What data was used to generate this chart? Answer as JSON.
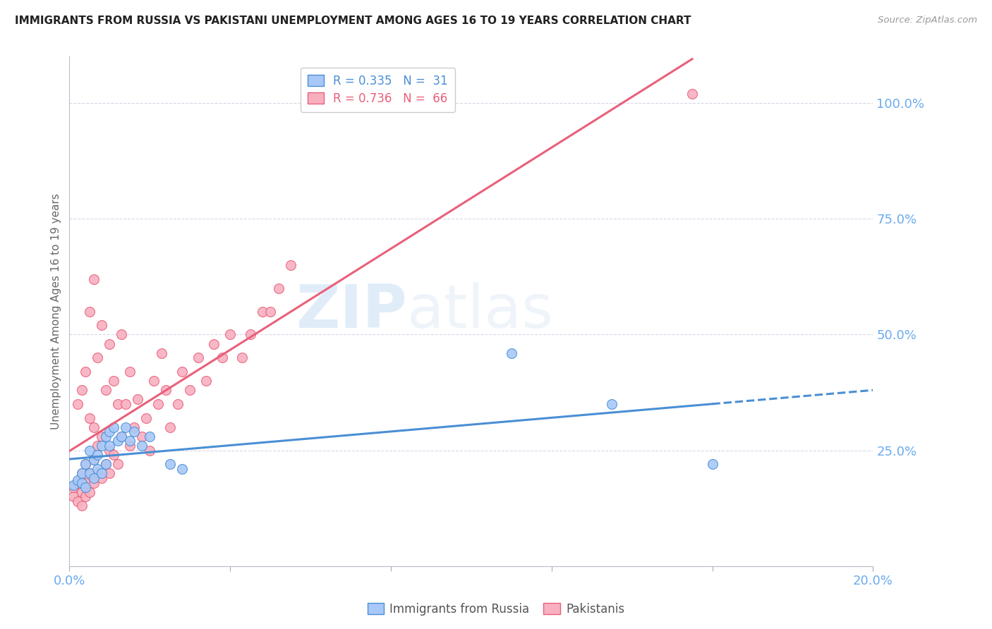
{
  "title": "IMMIGRANTS FROM RUSSIA VS PAKISTANI UNEMPLOYMENT AMONG AGES 16 TO 19 YEARS CORRELATION CHART",
  "source": "Source: ZipAtlas.com",
  "ylabel": "Unemployment Among Ages 16 to 19 years",
  "xlim": [
    0.0,
    0.2
  ],
  "ylim": [
    0.0,
    1.1
  ],
  "yticks": [
    0.25,
    0.5,
    0.75,
    1.0
  ],
  "ytick_labels": [
    "25.0%",
    "50.0%",
    "75.0%",
    "100.0%"
  ],
  "background_color": "#ffffff",
  "watermark_text": "ZIPatlas",
  "legend_r1": "R = 0.335",
  "legend_n1": "N =  31",
  "legend_r2": "R = 0.736",
  "legend_n2": "N =  66",
  "blue_color": "#a8c8f8",
  "pink_color": "#f8b0c0",
  "trendline_blue_color": "#4a8fd4",
  "trendline_pink_color": "#e8607a",
  "axis_label_color": "#6aabee",
  "grid_color": "#d8d8e8",
  "russia_x": [
    0.001,
    0.002,
    0.003,
    0.003,
    0.004,
    0.004,
    0.005,
    0.005,
    0.006,
    0.006,
    0.007,
    0.007,
    0.008,
    0.008,
    0.009,
    0.009,
    0.01,
    0.01,
    0.011,
    0.012,
    0.013,
    0.014,
    0.015,
    0.016,
    0.018,
    0.02,
    0.025,
    0.028,
    0.11,
    0.135,
    0.16
  ],
  "russia_y": [
    0.175,
    0.185,
    0.18,
    0.2,
    0.17,
    0.22,
    0.2,
    0.25,
    0.19,
    0.23,
    0.21,
    0.24,
    0.2,
    0.26,
    0.22,
    0.28,
    0.26,
    0.29,
    0.3,
    0.27,
    0.28,
    0.3,
    0.27,
    0.29,
    0.26,
    0.28,
    0.22,
    0.21,
    0.46,
    0.35,
    0.22
  ],
  "pakistan_x": [
    0.001,
    0.001,
    0.002,
    0.002,
    0.002,
    0.003,
    0.003,
    0.003,
    0.003,
    0.004,
    0.004,
    0.004,
    0.004,
    0.005,
    0.005,
    0.005,
    0.005,
    0.006,
    0.006,
    0.006,
    0.006,
    0.007,
    0.007,
    0.007,
    0.008,
    0.008,
    0.008,
    0.009,
    0.009,
    0.01,
    0.01,
    0.01,
    0.011,
    0.011,
    0.012,
    0.012,
    0.013,
    0.013,
    0.014,
    0.015,
    0.015,
    0.016,
    0.017,
    0.018,
    0.019,
    0.02,
    0.021,
    0.022,
    0.023,
    0.024,
    0.025,
    0.027,
    0.028,
    0.03,
    0.032,
    0.034,
    0.036,
    0.038,
    0.04,
    0.043,
    0.045,
    0.048,
    0.05,
    0.052,
    0.055,
    0.155
  ],
  "pakistan_y": [
    0.15,
    0.17,
    0.14,
    0.18,
    0.35,
    0.13,
    0.16,
    0.2,
    0.38,
    0.15,
    0.18,
    0.22,
    0.42,
    0.16,
    0.2,
    0.32,
    0.55,
    0.18,
    0.23,
    0.3,
    0.62,
    0.2,
    0.26,
    0.45,
    0.19,
    0.28,
    0.52,
    0.22,
    0.38,
    0.2,
    0.25,
    0.48,
    0.24,
    0.4,
    0.22,
    0.35,
    0.28,
    0.5,
    0.35,
    0.26,
    0.42,
    0.3,
    0.36,
    0.28,
    0.32,
    0.25,
    0.4,
    0.35,
    0.46,
    0.38,
    0.3,
    0.35,
    0.42,
    0.38,
    0.45,
    0.4,
    0.48,
    0.45,
    0.5,
    0.45,
    0.5,
    0.55,
    0.55,
    0.6,
    0.65,
    1.02
  ]
}
